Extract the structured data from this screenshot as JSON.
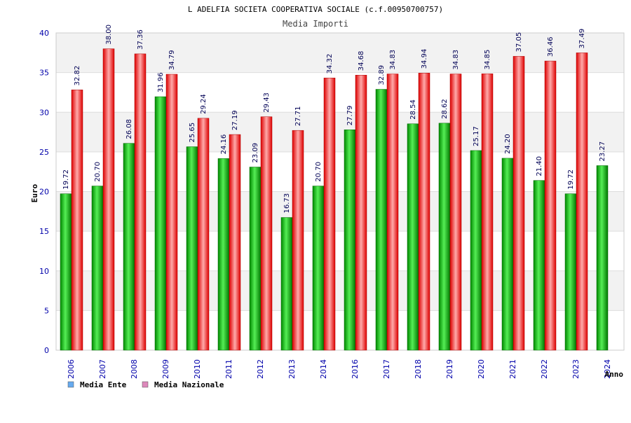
{
  "chart_data": {
    "type": "bar",
    "title": "L ADELFIA SOCIETA COOPERATIVA SOCIALE (c.f.00950700757)",
    "subtitle": "Media Importi",
    "xlabel": "Anno",
    "ylabel": "Euro",
    "ylim": [
      0,
      40
    ],
    "yticks": [
      0,
      5,
      10,
      15,
      20,
      25,
      30,
      35,
      40
    ],
    "grid": true,
    "legend_position": "bottom-left",
    "categories": [
      "2006",
      "2007",
      "2008",
      "2009",
      "2010",
      "2011",
      "2012",
      "2013",
      "2014",
      "2016",
      "2017",
      "2018",
      "2019",
      "2020",
      "2021",
      "2022",
      "2023",
      "2024"
    ],
    "series": [
      {
        "name": "Media Ente",
        "color": "#00aa00",
        "legend_color": "#66aaee",
        "values": [
          19.72,
          20.7,
          26.08,
          31.96,
          25.65,
          24.16,
          23.09,
          16.73,
          20.7,
          27.79,
          32.89,
          28.54,
          28.62,
          25.17,
          24.2,
          21.4,
          19.72,
          23.27
        ],
        "labels": [
          "19.72",
          "20.70",
          "26.08",
          "31.96",
          "25.65",
          "24.16",
          "23.09",
          "16.73",
          "20.70",
          "27.79",
          "32.89",
          "28.54",
          "28.62",
          "25.17",
          "24.20",
          "21.40",
          "19.72",
          "23.27"
        ]
      },
      {
        "name": "Media Nazionale",
        "color": "#ee1111",
        "legend_color": "#dd88bb",
        "values": [
          32.82,
          38.0,
          37.36,
          34.79,
          29.24,
          27.19,
          29.43,
          27.71,
          34.32,
          34.68,
          34.83,
          34.94,
          34.83,
          34.85,
          37.05,
          36.46,
          37.49,
          null
        ],
        "labels": [
          "32.82",
          "38.00",
          "37.36",
          "34.79",
          "29.24",
          "27.19",
          "29.43",
          "27.71",
          "34.32",
          "34.68",
          "34.83",
          "34.94",
          "34.83",
          "34.85",
          "37.05",
          "36.46",
          "37.49",
          ""
        ]
      }
    ]
  }
}
